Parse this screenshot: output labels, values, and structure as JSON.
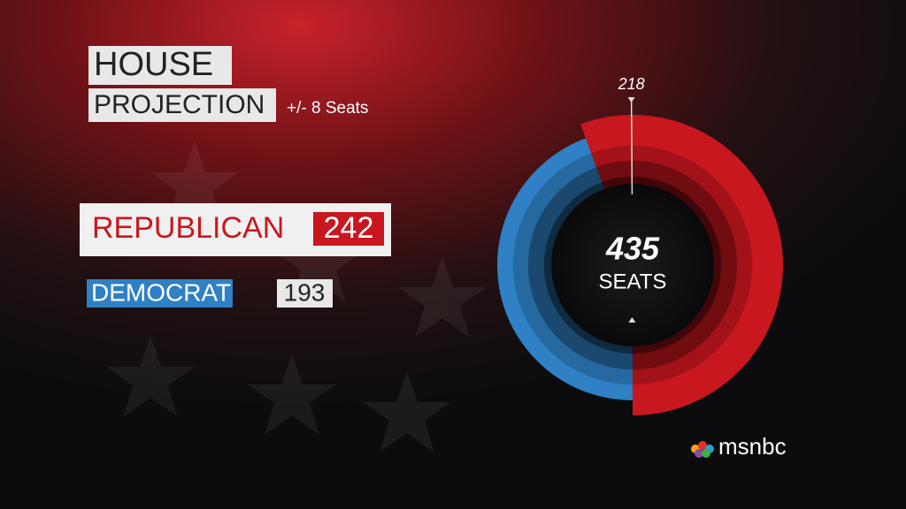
{
  "chart_data": {
    "type": "donut",
    "title": "HOUSE",
    "subtitle": "PROJECTION",
    "subtitle_note": "+/- 8 Seats",
    "categories": [
      "REPUBLICAN",
      "DEMOCRAT"
    ],
    "values": [
      242,
      193
    ],
    "colors": [
      "#c8171e",
      "#2f80c4"
    ],
    "total": 435,
    "total_label": "SEATS",
    "threshold": 218
  },
  "logo": "msnbc"
}
